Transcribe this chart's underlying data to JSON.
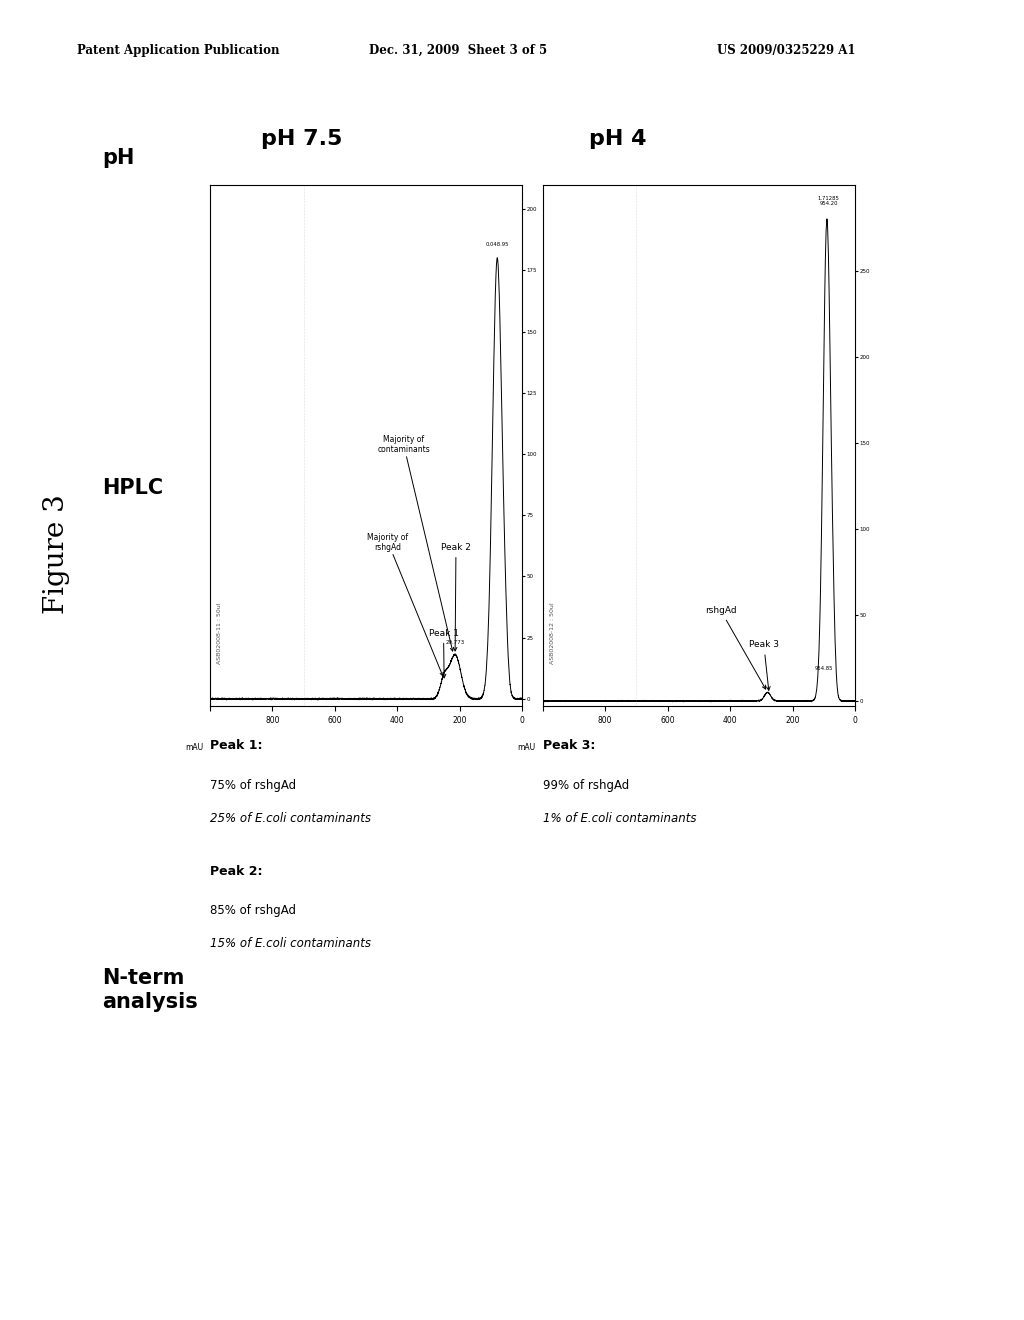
{
  "header_left": "Patent Application Publication",
  "header_center": "Dec. 31, 2009  Sheet 3 of 5",
  "header_right": "US 2009/0325229 A1",
  "background_color": "#ffffff",
  "title": "Figure 3",
  "ph75_label": "pH 7.5",
  "ph4_label": "pH 4",
  "row_label_ph": "pH",
  "row_label_hplc": "HPLC",
  "row_label_nterm": "N-term\nanalysis",
  "sample_ph75": "ASB02008-11 : 50ul",
  "sample_ph4": "ASB02008-12 : 50ul",
  "nterm_ph75_peak1_bold": "Peak 1:",
  "nterm_ph75_peak1_line1": "75% of rshgAd",
  "nterm_ph75_peak1_line2": "25% of E.coli contaminants",
  "nterm_ph75_peak2_bold": "Peak 2:",
  "nterm_ph75_peak2_line1": "85% of rshgAd",
  "nterm_ph75_peak2_line2": "15% of E.coli contaminants",
  "nterm_ph4_peak3_bold": "Peak 3:",
  "nterm_ph4_peak3_line1": "99% of rshgAd",
  "nterm_ph4_peak3_line2": "1% of E.coli contaminants"
}
